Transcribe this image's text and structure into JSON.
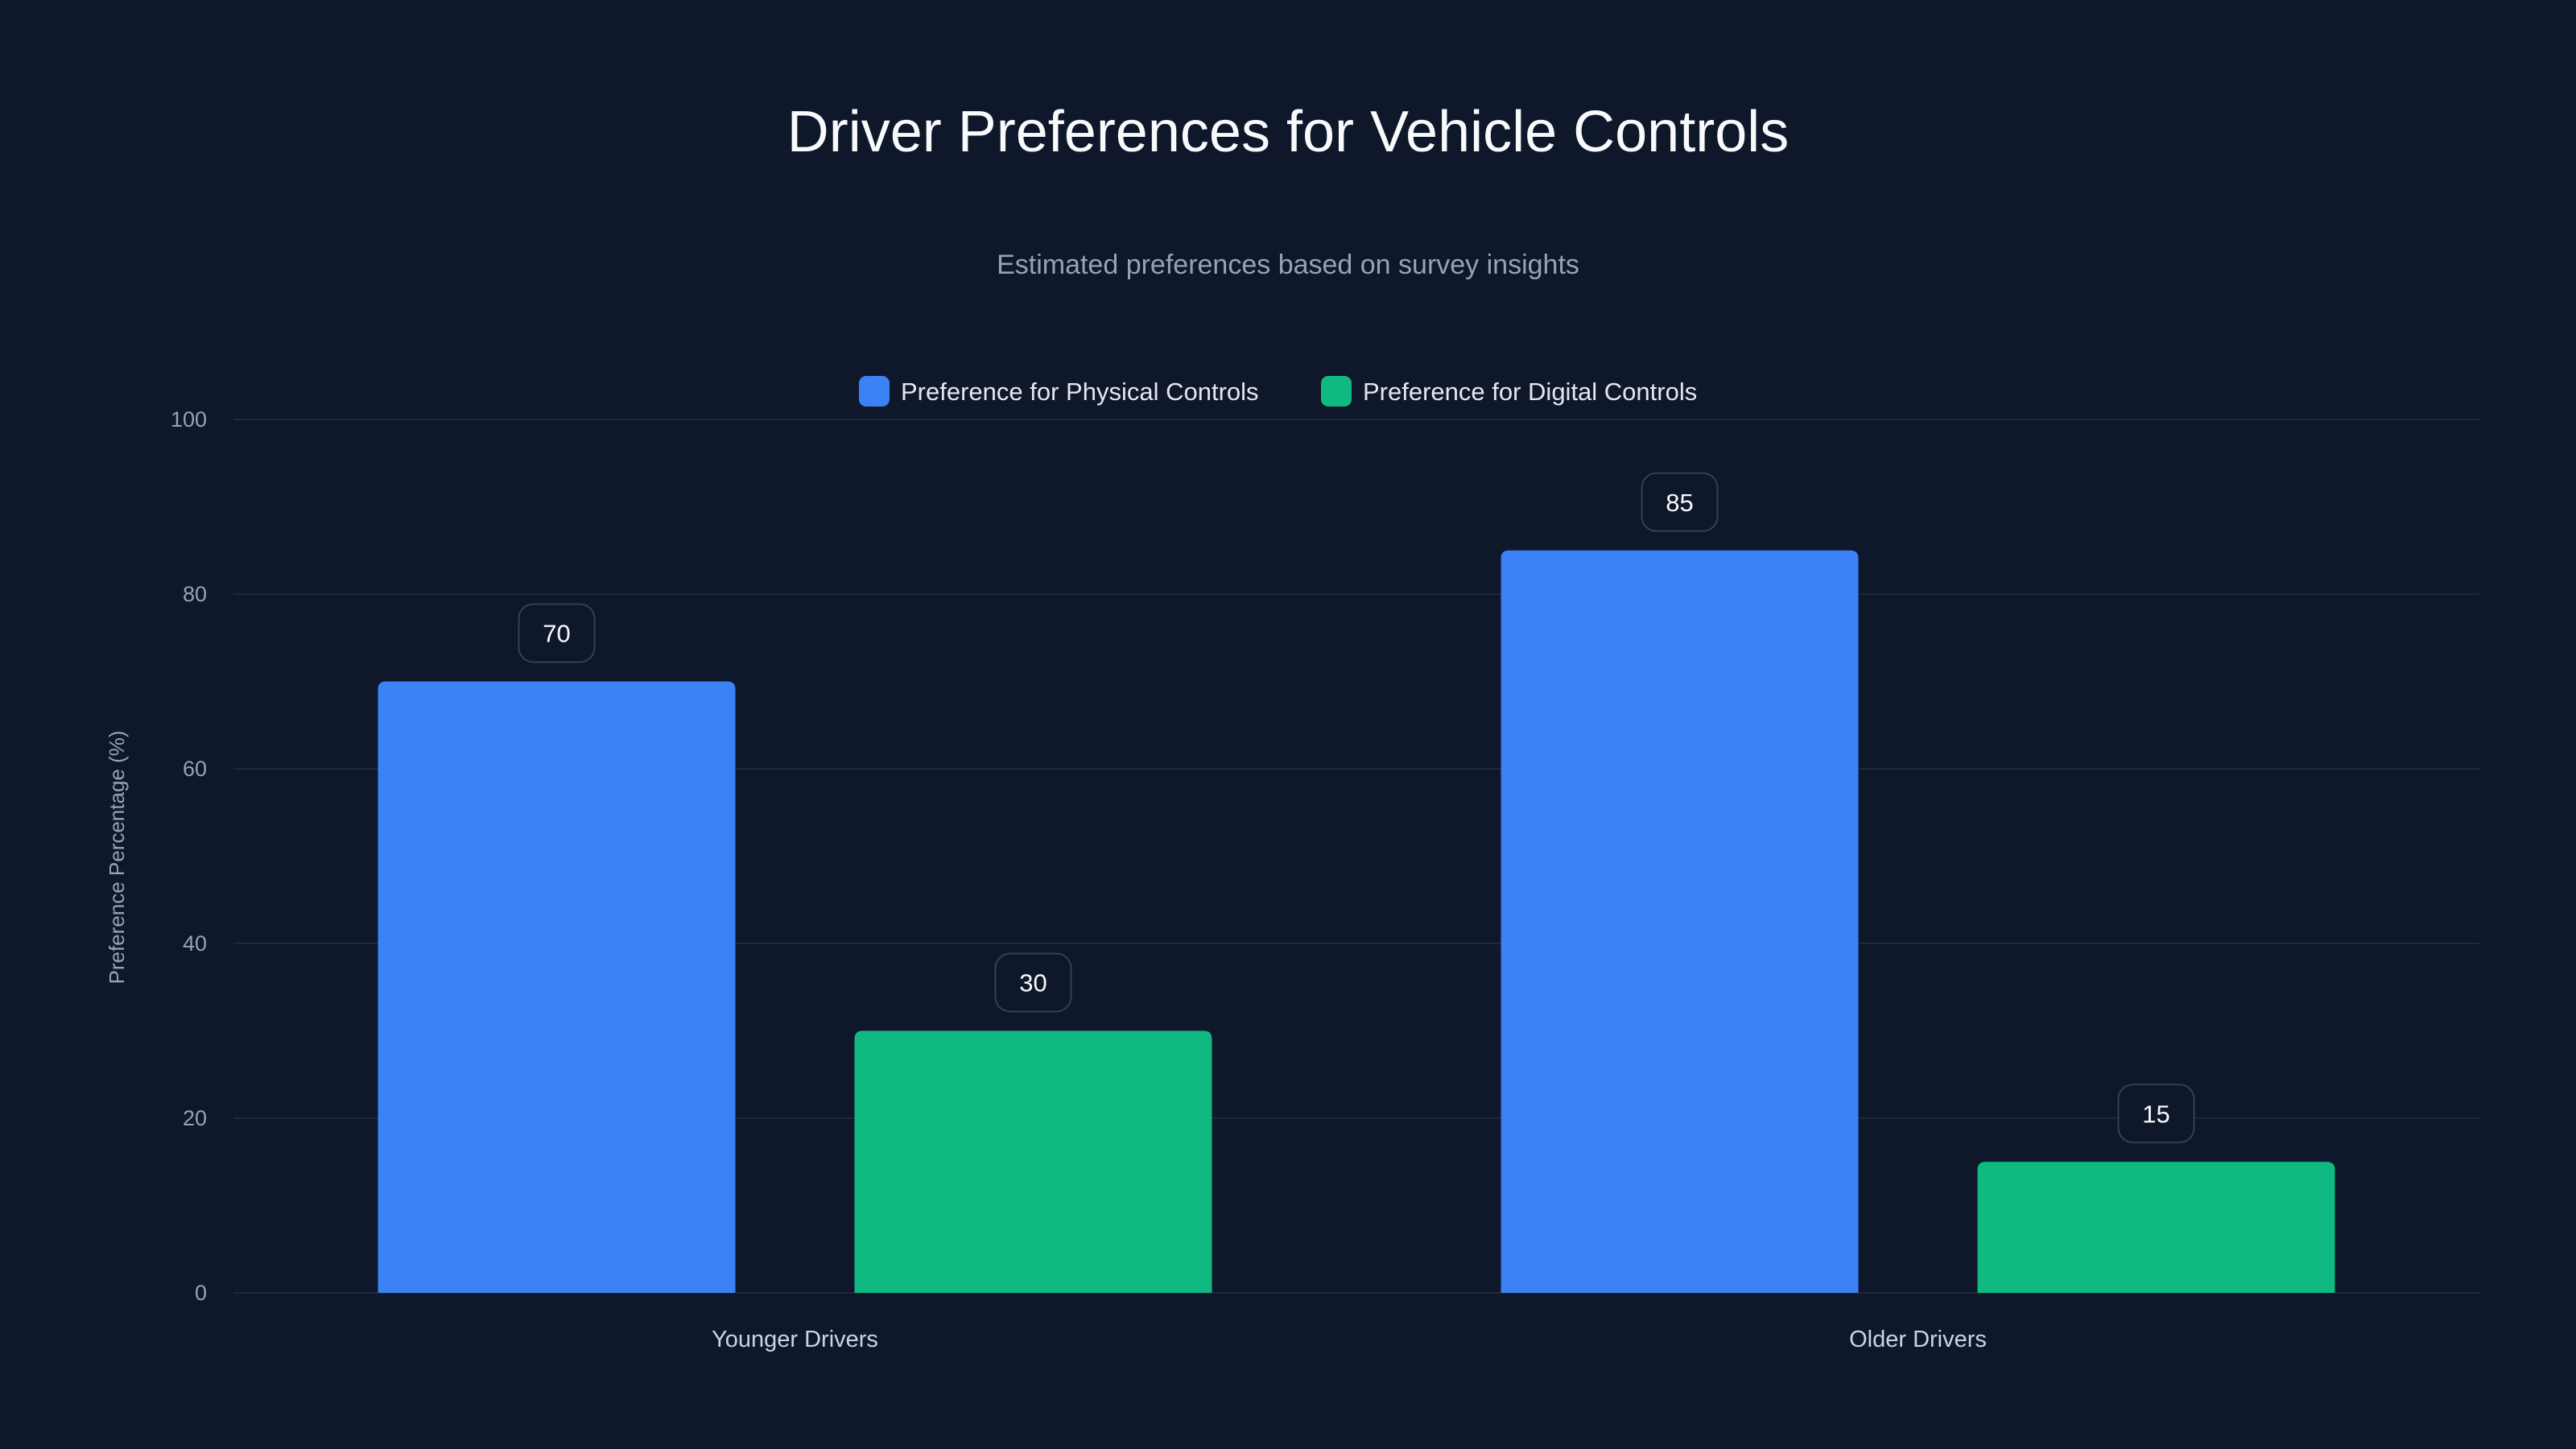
{
  "chart_data": {
    "type": "bar",
    "title": "Driver Preferences for Vehicle Controls",
    "subtitle": "Estimated preferences based on survey insights",
    "categories": [
      "Younger Drivers",
      "Older Drivers"
    ],
    "series": [
      {
        "name": "Preference for Physical Controls",
        "color": "#3b82f6",
        "values": [
          70,
          85
        ]
      },
      {
        "name": "Preference for Digital Controls",
        "color": "#10b981",
        "values": [
          30,
          15
        ]
      }
    ],
    "xlabel": "",
    "ylabel": "Preference Percentage (%)",
    "ylim": [
      0,
      100
    ],
    "yticks": [
      "0",
      "20",
      "40",
      "60",
      "80",
      "100"
    ],
    "grid": true,
    "legend": "top-center"
  }
}
